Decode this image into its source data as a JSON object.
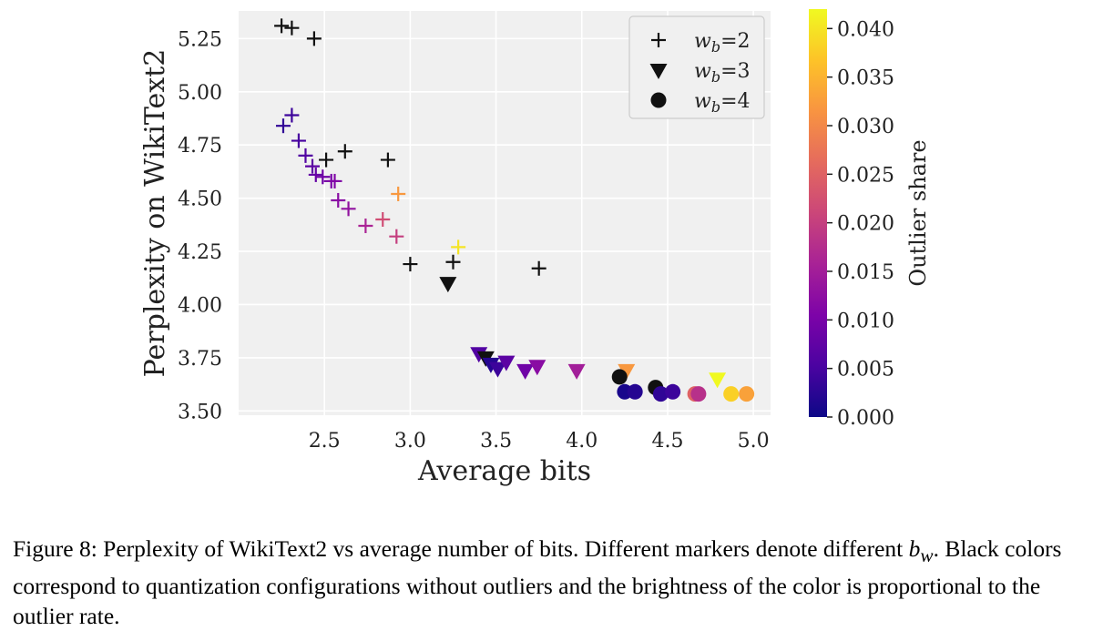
{
  "chart_data": {
    "type": "scatter",
    "xlabel": "Average bits",
    "ylabel": "Perplexity on WikiText2",
    "xlim": [
      2.0,
      5.1
    ],
    "ylim": [
      3.48,
      5.38
    ],
    "xticks": [
      "2.5",
      "3.0",
      "3.5",
      "4.0",
      "4.5",
      "5.0"
    ],
    "yticks": [
      "3.50",
      "3.75",
      "4.00",
      "4.25",
      "4.50",
      "4.75",
      "5.00",
      "5.25"
    ],
    "grid": true,
    "legend_placement": "top-right",
    "colorbar": {
      "label": "Outlier share",
      "colormap": "plasma",
      "range": [
        0.0,
        0.042
      ],
      "ticks": [
        "0.000",
        "0.005",
        "0.010",
        "0.015",
        "0.020",
        "0.025",
        "0.030",
        "0.035",
        "0.040"
      ]
    },
    "series": [
      {
        "name": "wb=2",
        "legend_base": "w",
        "legend_sub": "b",
        "legend_suffix": "=2",
        "marker": "plus",
        "points": [
          {
            "x": 2.25,
            "y": 5.31,
            "c": 0.0
          },
          {
            "x": 2.31,
            "y": 5.3,
            "c": 0.0
          },
          {
            "x": 2.44,
            "y": 5.25,
            "c": 0.0
          },
          {
            "x": 2.26,
            "y": 4.84,
            "c": 0.003
          },
          {
            "x": 2.31,
            "y": 4.89,
            "c": 0.004
          },
          {
            "x": 2.35,
            "y": 4.77,
            "c": 0.005
          },
          {
            "x": 2.39,
            "y": 4.7,
            "c": 0.006
          },
          {
            "x": 2.43,
            "y": 4.65,
            "c": 0.007
          },
          {
            "x": 2.45,
            "y": 4.61,
            "c": 0.008
          },
          {
            "x": 2.49,
            "y": 4.6,
            "c": 0.009
          },
          {
            "x": 2.54,
            "y": 4.58,
            "c": 0.01
          },
          {
            "x": 2.56,
            "y": 4.58,
            "c": 0.011
          },
          {
            "x": 2.58,
            "y": 4.49,
            "c": 0.012
          },
          {
            "x": 2.64,
            "y": 4.45,
            "c": 0.013
          },
          {
            "x": 2.51,
            "y": 4.68,
            "c": 0.0
          },
          {
            "x": 2.62,
            "y": 4.72,
            "c": 0.0
          },
          {
            "x": 2.87,
            "y": 4.68,
            "c": 0.0
          },
          {
            "x": 2.74,
            "y": 4.37,
            "c": 0.016
          },
          {
            "x": 2.84,
            "y": 4.4,
            "c": 0.022
          },
          {
            "x": 2.92,
            "y": 4.32,
            "c": 0.02
          },
          {
            "x": 2.93,
            "y": 4.52,
            "c": 0.032
          },
          {
            "x": 3.0,
            "y": 4.19,
            "c": 0.0
          },
          {
            "x": 3.25,
            "y": 4.2,
            "c": 0.0
          },
          {
            "x": 3.28,
            "y": 4.27,
            "c": 0.04
          },
          {
            "x": 3.75,
            "y": 4.17,
            "c": 0.0
          }
        ]
      },
      {
        "name": "wb=3",
        "legend_base": "w",
        "legend_sub": "b",
        "legend_suffix": "=3",
        "marker": "triangle-down",
        "points": [
          {
            "x": 3.22,
            "y": 4.1,
            "c": 0.0
          },
          {
            "x": 3.4,
            "y": 3.77,
            "c": 0.006
          },
          {
            "x": 3.44,
            "y": 3.75,
            "c": 0.0
          },
          {
            "x": 3.47,
            "y": 3.72,
            "c": 0.002
          },
          {
            "x": 3.51,
            "y": 3.7,
            "c": 0.004
          },
          {
            "x": 3.56,
            "y": 3.73,
            "c": 0.007
          },
          {
            "x": 3.67,
            "y": 3.69,
            "c": 0.009
          },
          {
            "x": 3.74,
            "y": 3.71,
            "c": 0.012
          },
          {
            "x": 3.97,
            "y": 3.69,
            "c": 0.015
          },
          {
            "x": 4.26,
            "y": 3.69,
            "c": 0.032
          },
          {
            "x": 4.79,
            "y": 3.65,
            "c": 0.042
          }
        ]
      },
      {
        "name": "wb=4",
        "legend_base": "w",
        "legend_sub": "b",
        "legend_suffix": "=4",
        "marker": "circle",
        "points": [
          {
            "x": 4.22,
            "y": 3.66,
            "c": 0.0
          },
          {
            "x": 4.25,
            "y": 3.59,
            "c": 0.001
          },
          {
            "x": 4.31,
            "y": 3.59,
            "c": 0.002
          },
          {
            "x": 4.43,
            "y": 3.61,
            "c": 0.0
          },
          {
            "x": 4.46,
            "y": 3.58,
            "c": 0.003
          },
          {
            "x": 4.53,
            "y": 3.59,
            "c": 0.004
          },
          {
            "x": 4.66,
            "y": 3.58,
            "c": 0.025
          },
          {
            "x": 4.68,
            "y": 3.58,
            "c": 0.018
          },
          {
            "x": 4.87,
            "y": 3.58,
            "c": 0.038
          },
          {
            "x": 4.96,
            "y": 3.58,
            "c": 0.033
          }
        ]
      }
    ]
  },
  "caption": {
    "text1": "Figure 8: Perplexity of WikiText2 vs average number of bits. Different markers denote different ",
    "math_base": "b",
    "math_sub": "w",
    "text2": ". Black colors correspond to quantization configurations without outliers and the brightness of the color is proportional to the outlier rate."
  }
}
